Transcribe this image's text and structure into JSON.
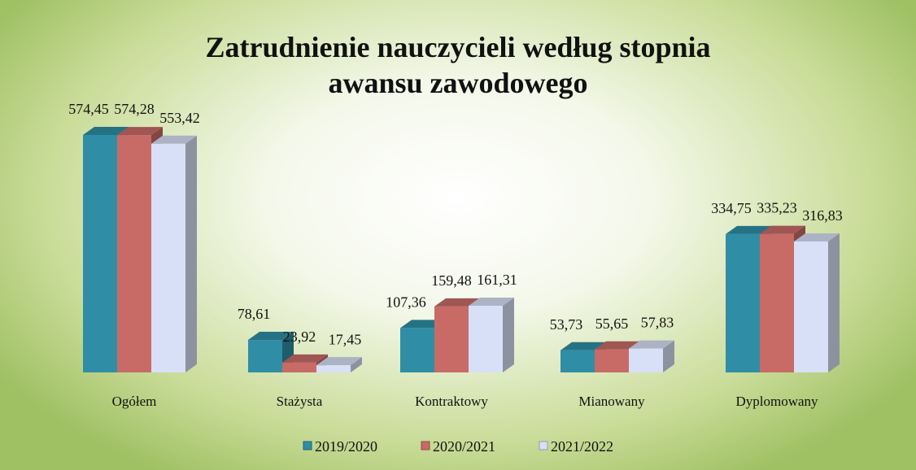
{
  "chart_data": {
    "type": "bar3d",
    "title": "Zatrudnienie nauczycieli według stopnia awansu zawodowego",
    "categories": [
      "Ogółem",
      "Stażysta",
      "Kontraktowy",
      "Mianowany",
      "Dyplomowany"
    ],
    "series": [
      {
        "name": "2019/2020",
        "color": "#2f8ea6",
        "values": [
          574.45,
          78.61,
          107.36,
          53.73,
          334.75
        ],
        "value_labels": [
          "574,45",
          "78,61",
          "107,36",
          "53,73",
          "334,75"
        ]
      },
      {
        "name": "2020/2021",
        "color": "#c86b67",
        "values": [
          574.28,
          23.92,
          159.48,
          55.65,
          335.23
        ],
        "value_labels": [
          "574,28",
          "23,92",
          "159,48",
          "55,65",
          "335,23"
        ]
      },
      {
        "name": "2021/2022",
        "color": "#d7e0f6",
        "values": [
          553.42,
          17.45,
          161.31,
          57.83,
          316.83
        ],
        "value_labels": [
          "553,42",
          "17,45",
          "161,31",
          "57,83",
          "316,83"
        ]
      }
    ],
    "legend": "bottom"
  }
}
